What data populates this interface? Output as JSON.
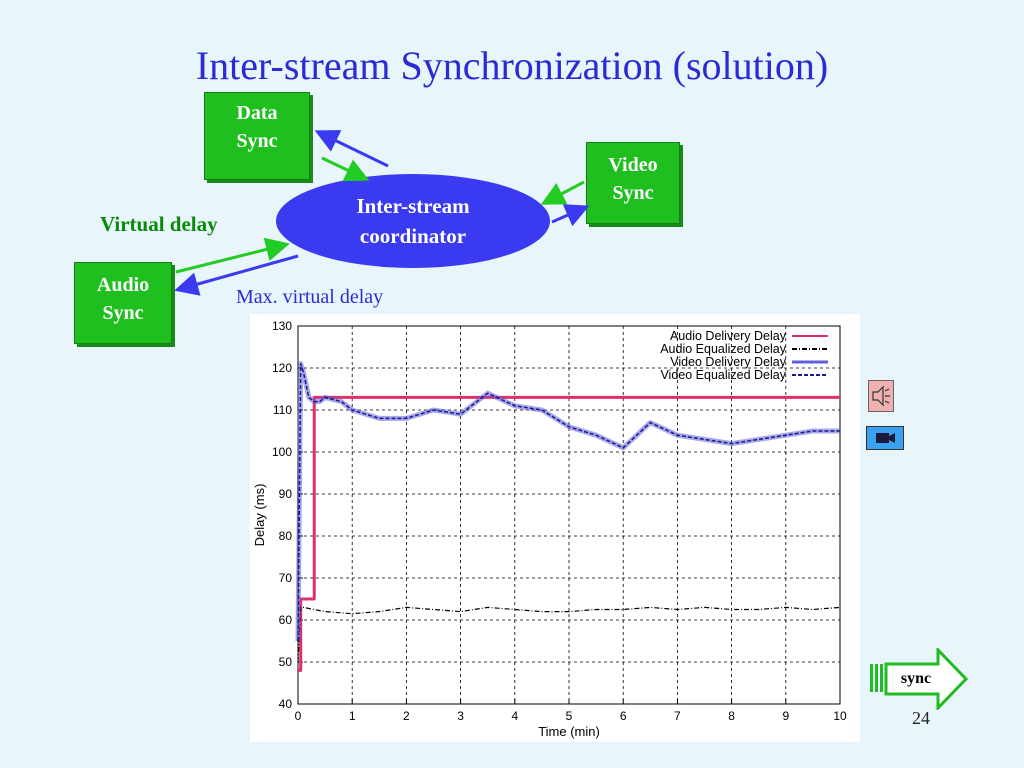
{
  "slide": {
    "title": "Inter-stream Synchronization (solution)",
    "data_sync": [
      "Data",
      "Sync"
    ],
    "video_sync": [
      "Video",
      "Sync"
    ],
    "audio_sync": [
      "Audio",
      "Sync"
    ],
    "coordinator": [
      "Inter-stream",
      "coordinator"
    ],
    "virtual_delay": "Virtual delay",
    "max_virtual_delay": "Max. virtual delay",
    "page_number": "24",
    "nav_button": "sync",
    "icons": [
      "speaker-icon",
      "camera-icon"
    ]
  },
  "chart_data": {
    "type": "line",
    "xlabel": "Time (min)",
    "ylabel": "Delay (ms)",
    "xlim": [
      0,
      10
    ],
    "ylim": [
      40,
      130
    ],
    "xticks": [
      0,
      1,
      2,
      3,
      4,
      5,
      6,
      7,
      8,
      9,
      10
    ],
    "yticks": [
      40,
      50,
      60,
      70,
      80,
      90,
      100,
      110,
      120,
      130
    ],
    "grid": true,
    "legend_position": "top-right",
    "series": [
      {
        "name": "Audio Delivery Delay",
        "color": "#e0306a",
        "style": "solid",
        "x": [
          0,
          0.05,
          0.05,
          0.3,
          0.3,
          10
        ],
        "y": [
          48,
          48,
          65,
          65,
          113,
          113
        ]
      },
      {
        "name": "Audio Equalized Delay",
        "color": "#000000",
        "style": "dashdot",
        "x": [
          0,
          0.05,
          0.1,
          0.3,
          0.5,
          1,
          1.5,
          2,
          2.5,
          3,
          3.5,
          4,
          4.5,
          5,
          5.5,
          6,
          6.5,
          7,
          7.5,
          8,
          8.5,
          9,
          9.5,
          10
        ],
        "y": [
          50,
          63,
          63,
          62.5,
          62,
          61.5,
          62,
          63,
          62.5,
          62,
          63,
          62.5,
          62,
          62,
          62.5,
          62.5,
          63,
          62.5,
          63,
          62.5,
          62.5,
          63,
          62.5,
          63
        ]
      },
      {
        "name": "Video Delivery Delay",
        "color": "#6060d8",
        "style": "solid",
        "x": [
          0,
          0.05,
          0.1,
          0.2,
          0.3,
          0.4,
          0.5,
          0.8,
          1,
          1.5,
          2,
          2.5,
          3,
          3.5,
          4,
          4.5,
          5,
          5.5,
          6,
          6.5,
          7,
          7.5,
          8,
          8.5,
          9,
          9.5,
          10
        ],
        "y": [
          55,
          121,
          119,
          113,
          112,
          112,
          113,
          112,
          110,
          108,
          108,
          110,
          109,
          114,
          111,
          110,
          106,
          104,
          101,
          107,
          104,
          103,
          102,
          103,
          104,
          105,
          105
        ]
      },
      {
        "name": "Video Equalized Delay",
        "color": "#1a1a8a",
        "style": "dashed",
        "x": [
          0,
          0.05,
          0.1,
          0.2,
          0.3,
          0.4,
          0.5,
          0.8,
          1,
          1.5,
          2,
          2.5,
          3,
          3.5,
          4,
          4.5,
          5,
          5.5,
          6,
          6.5,
          7,
          7.5,
          8,
          8.5,
          9,
          9.5,
          10
        ],
        "y": [
          55,
          121,
          119,
          113,
          112,
          112,
          113,
          112,
          110,
          108,
          108,
          110,
          109,
          114,
          111,
          110,
          106,
          104,
          101,
          107,
          104,
          103,
          102,
          103,
          104,
          105,
          105
        ]
      }
    ]
  }
}
